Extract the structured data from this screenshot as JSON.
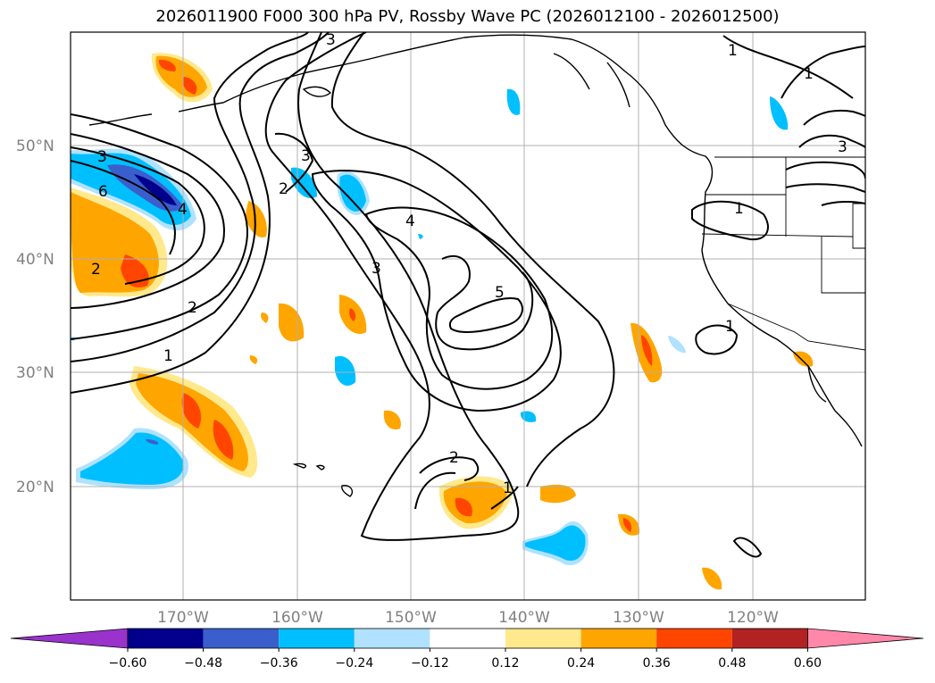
{
  "title": "2026011900 F000 300 hPa PV, Rossby Wave PC (2026012100 - 2026012500)",
  "map": {
    "lat_labels": [
      "50°N",
      "40°N",
      "30°N",
      "20°N"
    ],
    "lon_labels": [
      "170°W",
      "160°W",
      "150°W",
      "140°W",
      "130°W",
      "120°W"
    ],
    "pv_contour_labels": [
      "1",
      "1",
      "1",
      "1",
      "1",
      "1",
      "2",
      "2",
      "2",
      "2",
      "3",
      "3",
      "3",
      "3",
      "3",
      "4",
      "4",
      "5",
      "6"
    ],
    "colors": {
      "frame": "#000000",
      "grid": "#b0b0b0",
      "tick_label": "#808080"
    }
  },
  "colorbar": {
    "levels": [
      "−0.60",
      "−0.48",
      "−0.36",
      "−0.24",
      "−0.12",
      "0.12",
      "0.24",
      "0.36",
      "0.48",
      "0.60"
    ],
    "colors": [
      "#9933cc",
      "#00008b",
      "#3a5fcd",
      "#00bfff",
      "#b0e2ff",
      "#ffffff",
      "#ffe98c",
      "#ffa500",
      "#ff4500",
      "#b22222",
      "#ff88aa"
    ]
  }
}
